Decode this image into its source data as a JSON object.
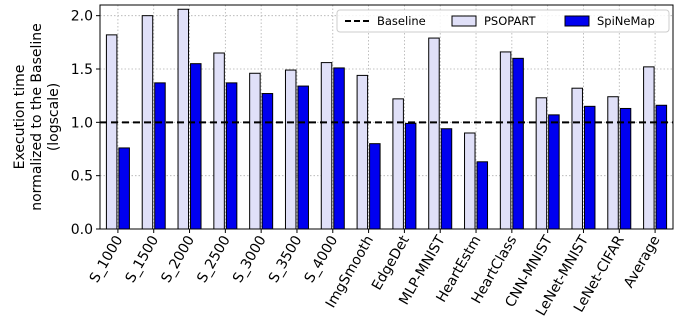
{
  "chart_data": {
    "type": "bar",
    "categories": [
      "S_1000",
      "S_1500",
      "S_2000",
      "S_2500",
      "S_3000",
      "S_3500",
      "S_4000",
      "ImgSmooth",
      "EdgeDet",
      "MLP-MNIST",
      "HeartEstm",
      "HeartClass",
      "CNN-MNIST",
      "LeNet-MNIST",
      "LeNet-CIFAR",
      "Average"
    ],
    "series": [
      {
        "name": "PSOPART",
        "color": "#e0e0f8",
        "values": [
          1.82,
          2.0,
          2.06,
          1.65,
          1.46,
          1.49,
          1.56,
          1.44,
          1.22,
          1.79,
          0.9,
          1.66,
          1.23,
          1.32,
          1.24,
          1.52
        ]
      },
      {
        "name": "SpiNeMap",
        "color": "#0000f0",
        "values": [
          0.76,
          1.37,
          1.55,
          1.37,
          1.27,
          1.34,
          1.51,
          0.8,
          0.99,
          0.94,
          0.63,
          1.6,
          1.07,
          1.15,
          1.13,
          1.16
        ]
      }
    ],
    "baseline": {
      "name": "Baseline",
      "value": 1.0,
      "style": "dashed"
    },
    "ylabel": [
      "Execution time",
      "normalized to the Baseline",
      "(logscale)"
    ],
    "ylim": [
      0,
      2.1
    ],
    "yticks": [
      "0.0",
      "0.5",
      "1.0",
      "1.5",
      "2.0"
    ],
    "grid": true,
    "legend": {
      "placement": "top-right",
      "columns": 3,
      "entries": [
        "Baseline",
        "PSOPART",
        "SpiNeMap"
      ]
    },
    "bar_edge_color": "#000000"
  }
}
